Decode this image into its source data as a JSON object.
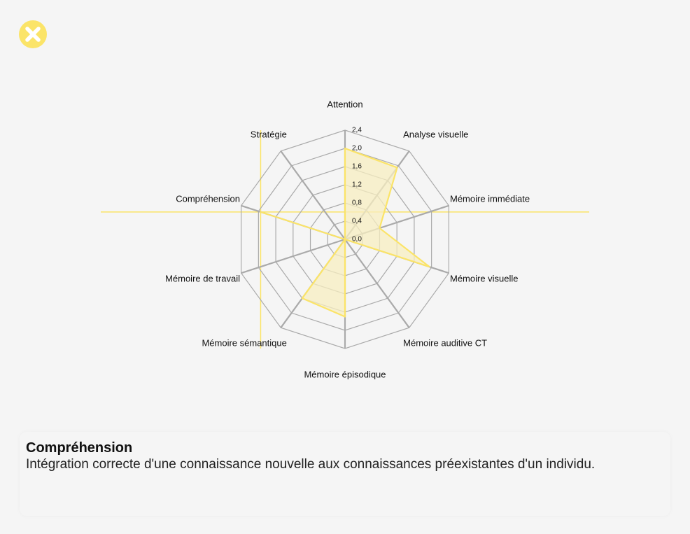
{
  "close_button": {
    "icon": "close-icon",
    "color": "#fbe468"
  },
  "chart_data": {
    "type": "radar",
    "title": "",
    "axes": [
      "Attention",
      "Analyse visuelle",
      "Mémoire immédiate",
      "Mémoire visuelle",
      "Mémoire auditive CT",
      "Mémoire épisodique",
      "Mémoire sémantique",
      "Mémoire de travail",
      "Compréhension",
      "Stratégie"
    ],
    "ticks": [
      "0,0",
      "0,4",
      "0,8",
      "1,2",
      "1,6",
      "2,0",
      "2,4"
    ],
    "range": [
      0,
      2.4
    ],
    "series": [
      {
        "values": [
          2.0,
          1.95,
          0.8,
          1.95,
          0.0,
          1.7,
          1.6,
          0.0,
          1.95,
          0.0
        ],
        "stroke": "#fbe468",
        "fill": "#f7eec0"
      }
    ],
    "selected_axis": "Compréhension",
    "grid": true,
    "grid_color": "#aaaaaa",
    "crosshair_color": "#fbe468"
  },
  "info_panel": {
    "title": "Compréhension",
    "description": "Intégration correcte d'une connaissance nouvelle aux connaissances préexistantes d'un individu."
  }
}
